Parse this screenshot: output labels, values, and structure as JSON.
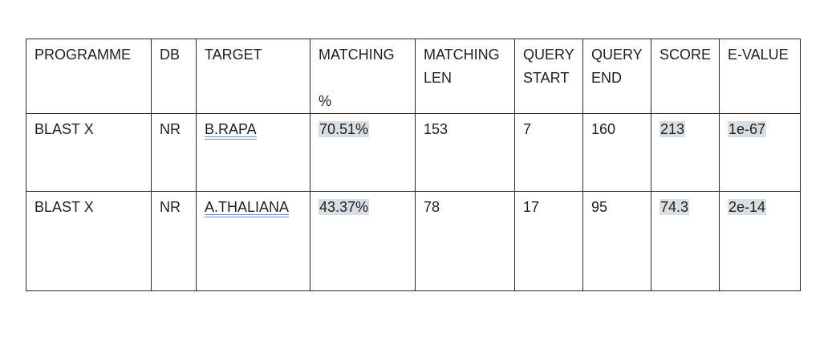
{
  "table": {
    "headers": [
      {
        "line1": "PROGRAMME",
        "line2": ""
      },
      {
        "line1": "DB",
        "line2": ""
      },
      {
        "line1": "TARGET",
        "line2": ""
      },
      {
        "line1": "MATCHING",
        "line2": "%"
      },
      {
        "line1": "MATCHING",
        "line2": "LEN"
      },
      {
        "line1": "QUERY",
        "line2": "START"
      },
      {
        "line1": "QUERY",
        "line2": "END"
      },
      {
        "line1": "SCORE",
        "line2": ""
      },
      {
        "line1": "E-VALUE",
        "line2": ""
      }
    ],
    "rows": [
      [
        "BLAST X",
        "NR",
        "B.RAPA",
        "70.51%",
        "153",
        "7",
        "160",
        "213",
        "1e-67"
      ],
      [
        "BLAST X",
        "NR",
        "A.THALIANA",
        "43.37%",
        "78",
        "17",
        "95",
        "74.3",
        "2e-14"
      ]
    ]
  }
}
